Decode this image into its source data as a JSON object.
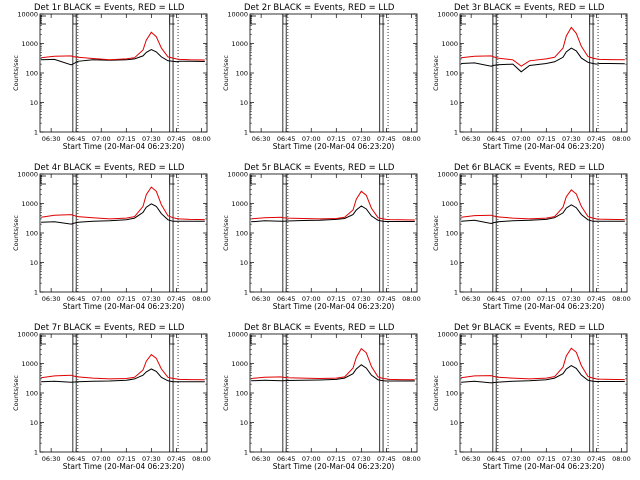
{
  "colors": {
    "events": "#000000",
    "lld": "#e00000",
    "axes": "#000000",
    "background": "#ffffff"
  },
  "chart_data": [
    {
      "type": "line",
      "title": "Det 1r BLACK = Events, RED = LLD",
      "xlabel": "Start Time (20-Mar-04 06:23:20)",
      "ylabel": "Counts/sec",
      "ylog": true,
      "ylim": [
        1,
        10000
      ],
      "yticks": [
        "1",
        "10",
        "100",
        "1000",
        "10000"
      ],
      "xticks": [
        "06:30",
        "06:45",
        "07:00",
        "07:15",
        "07:30",
        "07:45",
        "08:00"
      ],
      "xlim": [
        "06:23:20",
        "08:03:20"
      ],
      "x": [
        "06:24",
        "06:32",
        "06:42",
        "06:43",
        "06:46",
        "06:55",
        "07:05",
        "07:15",
        "07:20",
        "07:25",
        "07:27",
        "07:30",
        "07:33",
        "07:36",
        "07:40",
        "07:43",
        "07:45",
        "07:47",
        "07:53",
        "08:02"
      ],
      "series": [
        {
          "name": "BLACK = Events",
          "values": [
            280,
            290,
            190,
            200,
            250,
            280,
            270,
            280,
            300,
            380,
            500,
            620,
            520,
            350,
            260,
            250,
            240,
            250,
            250,
            245
          ]
        },
        {
          "name": "RED = LLD",
          "values": [
            330,
            370,
            380,
            360,
            340,
            310,
            280,
            300,
            330,
            600,
            1300,
            2400,
            1700,
            700,
            350,
            320,
            300,
            290,
            280,
            275
          ]
        }
      ],
      "markers_solid": [
        "06:43",
        "06:45",
        "07:41",
        "07:43"
      ],
      "markers_dotted": [
        "06:46",
        "07:46"
      ]
    },
    {
      "type": "line",
      "title": "Det 2r BLACK = Events, RED = LLD",
      "xlabel": "Start Time (20-Mar-04 06:23:20)",
      "ylabel": "Counts/sec",
      "ylog": true,
      "ylim": [
        1,
        10000
      ],
      "yticks": [
        "1",
        "10",
        "100",
        "1000",
        "10000"
      ],
      "xticks": [
        "06:30",
        "06:45",
        "07:00",
        "07:15",
        "07:30",
        "07:45",
        "08:00"
      ],
      "xlim": [
        "06:23:20",
        "08:03:20"
      ],
      "x": [],
      "series": [],
      "markers_solid": [
        "06:43",
        "06:45",
        "07:41",
        "07:43"
      ],
      "markers_dotted": [
        "06:46",
        "07:46"
      ]
    },
    {
      "type": "line",
      "title": "Det 3r BLACK = Events, RED = LLD",
      "xlabel": "Start Time (20-Mar-04 06:23:20)",
      "ylabel": "Counts/sec",
      "ylog": true,
      "ylim": [
        1,
        10000
      ],
      "yticks": [
        "1",
        "10",
        "100",
        "1000",
        "10000"
      ],
      "xticks": [
        "06:30",
        "06:45",
        "07:00",
        "07:15",
        "07:30",
        "07:45",
        "08:00"
      ],
      "xlim": [
        "06:23:20",
        "08:03:20"
      ],
      "x": [
        "06:24",
        "06:32",
        "06:42",
        "06:43",
        "06:46",
        "06:55",
        "07:00",
        "07:05",
        "07:15",
        "07:20",
        "07:25",
        "07:27",
        "07:30",
        "07:33",
        "07:36",
        "07:40",
        "07:43",
        "07:45",
        "07:47",
        "07:53",
        "08:02"
      ],
      "series": [
        {
          "name": "BLACK = Events",
          "values": [
            210,
            220,
            170,
            180,
            190,
            200,
            110,
            180,
            210,
            240,
            340,
            520,
            700,
            560,
            320,
            230,
            210,
            200,
            210,
            210,
            205
          ]
        },
        {
          "name": "RED = LLD",
          "values": [
            330,
            370,
            380,
            360,
            320,
            280,
            170,
            260,
            300,
            340,
            700,
            1800,
            3500,
            2200,
            800,
            360,
            320,
            300,
            290,
            285,
            280
          ]
        }
      ],
      "markers_solid": [
        "06:43",
        "06:45",
        "07:41",
        "07:43"
      ],
      "markers_dotted": [
        "06:46",
        "07:46"
      ]
    },
    {
      "type": "line",
      "title": "Det 4r BLACK = Events, RED = LLD",
      "xlabel": "Start Time (20-Mar-04 06:23:20)",
      "ylabel": "Counts/sec",
      "ylog": true,
      "ylim": [
        1,
        10000
      ],
      "yticks": [
        "1",
        "10",
        "100",
        "1000",
        "10000"
      ],
      "xticks": [
        "06:30",
        "06:45",
        "07:00",
        "07:15",
        "07:30",
        "07:45",
        "08:00"
      ],
      "xlim": [
        "06:23:20",
        "08:03:20"
      ],
      "x": [
        "06:24",
        "06:32",
        "06:42",
        "06:43",
        "06:46",
        "06:55",
        "07:05",
        "07:15",
        "07:20",
        "07:25",
        "07:27",
        "07:30",
        "07:33",
        "07:36",
        "07:40",
        "07:43",
        "07:45",
        "07:47",
        "07:53",
        "08:02"
      ],
      "series": [
        {
          "name": "BLACK = Events",
          "values": [
            230,
            240,
            200,
            210,
            230,
            250,
            260,
            280,
            320,
            500,
            750,
            980,
            800,
            450,
            280,
            250,
            250,
            250,
            250,
            250
          ]
        },
        {
          "name": "RED = LLD",
          "values": [
            340,
            400,
            420,
            400,
            360,
            330,
            300,
            320,
            360,
            800,
            2000,
            3600,
            2600,
            900,
            380,
            330,
            310,
            300,
            290,
            285
          ]
        }
      ],
      "markers_solid": [
        "06:43",
        "06:45",
        "07:41",
        "07:43"
      ],
      "markers_dotted": [
        "06:46",
        "07:46"
      ]
    },
    {
      "type": "line",
      "title": "Det 5r BLACK = Events, RED = LLD",
      "xlabel": "Start Time (20-Mar-04 06:23:20)",
      "ylabel": "Counts/sec",
      "ylog": true,
      "ylim": [
        1,
        10000
      ],
      "yticks": [
        "1",
        "10",
        "100",
        "1000",
        "10000"
      ],
      "xticks": [
        "06:30",
        "06:45",
        "07:00",
        "07:15",
        "07:30",
        "07:45",
        "08:00"
      ],
      "xlim": [
        "06:23:20",
        "08:03:20"
      ],
      "x": [
        "06:24",
        "06:32",
        "06:42",
        "06:43",
        "06:46",
        "06:55",
        "07:05",
        "07:15",
        "07:20",
        "07:25",
        "07:27",
        "07:30",
        "07:33",
        "07:36",
        "07:40",
        "07:43",
        "07:45",
        "07:47",
        "07:53",
        "08:02"
      ],
      "series": [
        {
          "name": "BLACK = Events",
          "values": [
            240,
            260,
            250,
            250,
            255,
            265,
            270,
            290,
            310,
            420,
            600,
            820,
            650,
            380,
            270,
            250,
            245,
            245,
            245,
            245
          ]
        },
        {
          "name": "RED = LLD",
          "values": [
            300,
            330,
            340,
            330,
            320,
            310,
            300,
            310,
            340,
            600,
            1400,
            2600,
            1900,
            700,
            330,
            300,
            290,
            285,
            280,
            275
          ]
        }
      ],
      "markers_solid": [
        "06:43",
        "06:45",
        "07:41",
        "07:43"
      ],
      "markers_dotted": [
        "06:46",
        "07:46"
      ]
    },
    {
      "type": "line",
      "title": "Det 6r BLACK = Events, RED = LLD",
      "xlabel": "Start Time (20-Mar-04 06:23:20)",
      "ylabel": "Counts/sec",
      "ylog": true,
      "ylim": [
        1,
        10000
      ],
      "yticks": [
        "1",
        "10",
        "100",
        "1000",
        "10000"
      ],
      "xticks": [
        "06:30",
        "06:45",
        "07:00",
        "07:15",
        "07:30",
        "07:45",
        "08:00"
      ],
      "xlim": [
        "06:23:20",
        "08:03:20"
      ],
      "x": [
        "06:24",
        "06:32",
        "06:42",
        "06:43",
        "06:46",
        "06:55",
        "07:05",
        "07:15",
        "07:20",
        "07:25",
        "07:27",
        "07:30",
        "07:33",
        "07:36",
        "07:40",
        "07:43",
        "07:45",
        "07:47",
        "07:53",
        "08:02"
      ],
      "series": [
        {
          "name": "BLACK = Events",
          "values": [
            250,
            270,
            210,
            220,
            240,
            260,
            270,
            290,
            330,
            480,
            700,
            900,
            720,
            420,
            280,
            250,
            250,
            250,
            250,
            250
          ]
        },
        {
          "name": "RED = LLD",
          "values": [
            340,
            390,
            400,
            380,
            350,
            320,
            300,
            320,
            360,
            750,
            1700,
            2900,
            2100,
            800,
            360,
            320,
            300,
            295,
            290,
            285
          ]
        }
      ],
      "markers_solid": [
        "06:43",
        "06:45",
        "07:41",
        "07:43"
      ],
      "markers_dotted": [
        "06:46",
        "07:46"
      ]
    },
    {
      "type": "line",
      "title": "Det 7r BLACK = Events, RED = LLD",
      "xlabel": "Start Time (20-Mar-04 06:23:20)",
      "ylabel": "Counts/sec",
      "ylog": true,
      "ylim": [
        1,
        10000
      ],
      "yticks": [
        "1",
        "10",
        "100",
        "1000",
        "10000"
      ],
      "xticks": [
        "06:30",
        "06:45",
        "07:00",
        "07:15",
        "07:30",
        "07:45",
        "08:00"
      ],
      "xlim": [
        "06:23:20",
        "08:03:20"
      ],
      "x": [
        "06:24",
        "06:32",
        "06:42",
        "06:43",
        "06:46",
        "06:55",
        "07:05",
        "07:15",
        "07:20",
        "07:25",
        "07:27",
        "07:30",
        "07:33",
        "07:36",
        "07:40",
        "07:43",
        "07:45",
        "07:47",
        "07:53",
        "08:02"
      ],
      "series": [
        {
          "name": "BLACK = Events",
          "values": [
            240,
            250,
            230,
            235,
            240,
            250,
            255,
            270,
            300,
            400,
            520,
            650,
            540,
            340,
            260,
            240,
            240,
            240,
            240,
            240
          ]
        },
        {
          "name": "RED = LLD",
          "values": [
            330,
            380,
            400,
            380,
            350,
            320,
            300,
            310,
            340,
            600,
            1200,
            2000,
            1500,
            650,
            340,
            310,
            300,
            290,
            285,
            280
          ]
        }
      ],
      "markers_solid": [
        "06:43",
        "06:45",
        "07:41",
        "07:43"
      ],
      "markers_dotted": [
        "06:46",
        "07:46"
      ]
    },
    {
      "type": "line",
      "title": "Det 8r BLACK = Events, RED = LLD",
      "xlabel": "Start Time (20-Mar-04 06:23:20)",
      "ylabel": "Counts/sec",
      "ylog": true,
      "ylim": [
        1,
        10000
      ],
      "yticks": [
        "1",
        "10",
        "100",
        "1000",
        "10000"
      ],
      "xticks": [
        "06:30",
        "06:45",
        "07:00",
        "07:15",
        "07:30",
        "07:45",
        "08:00"
      ],
      "xlim": [
        "06:23:20",
        "08:03:20"
      ],
      "x": [
        "06:24",
        "06:32",
        "06:42",
        "06:43",
        "06:46",
        "06:55",
        "07:05",
        "07:15",
        "07:20",
        "07:25",
        "07:27",
        "07:30",
        "07:33",
        "07:36",
        "07:40",
        "07:43",
        "07:45",
        "07:47",
        "07:53",
        "08:02"
      ],
      "series": [
        {
          "name": "BLACK = Events",
          "values": [
            260,
            270,
            260,
            260,
            265,
            270,
            275,
            290,
            320,
            450,
            650,
            900,
            700,
            400,
            280,
            260,
            255,
            255,
            255,
            255
          ]
        },
        {
          "name": "RED = LLD",
          "values": [
            310,
            340,
            350,
            340,
            330,
            320,
            310,
            320,
            350,
            700,
            1600,
            3200,
            2300,
            800,
            350,
            310,
            300,
            290,
            285,
            280
          ]
        }
      ],
      "markers_solid": [
        "06:43",
        "06:45",
        "07:41",
        "07:43"
      ],
      "markers_dotted": [
        "06:46",
        "07:46"
      ]
    },
    {
      "type": "line",
      "title": "Det 9r BLACK = Events, RED = LLD",
      "xlabel": "Start Time (20-Mar-04 06:23:20)",
      "ylabel": "Counts/sec",
      "ylog": true,
      "ylim": [
        1,
        10000
      ],
      "yticks": [
        "1",
        "10",
        "100",
        "1000",
        "10000"
      ],
      "xticks": [
        "06:30",
        "06:45",
        "07:00",
        "07:15",
        "07:30",
        "07:45",
        "08:00"
      ],
      "xlim": [
        "06:23:20",
        "08:03:20"
      ],
      "x": [
        "06:24",
        "06:32",
        "06:42",
        "06:43",
        "06:46",
        "06:55",
        "07:05",
        "07:15",
        "07:20",
        "07:25",
        "07:27",
        "07:30",
        "07:33",
        "07:36",
        "07:40",
        "07:43",
        "07:45",
        "07:47",
        "07:53",
        "08:02"
      ],
      "series": [
        {
          "name": "BLACK = Events",
          "values": [
            230,
            250,
            220,
            225,
            235,
            250,
            260,
            280,
            320,
            450,
            650,
            850,
            680,
            400,
            270,
            250,
            245,
            245,
            245,
            245
          ]
        },
        {
          "name": "RED = LLD",
          "values": [
            330,
            380,
            390,
            370,
            340,
            320,
            300,
            320,
            360,
            750,
            1800,
            3300,
            2400,
            850,
            360,
            320,
            300,
            295,
            290,
            285
          ]
        }
      ],
      "markers_solid": [
        "06:43",
        "06:45",
        "07:41",
        "07:43"
      ],
      "markers_dotted": [
        "06:46",
        "07:46"
      ]
    }
  ]
}
